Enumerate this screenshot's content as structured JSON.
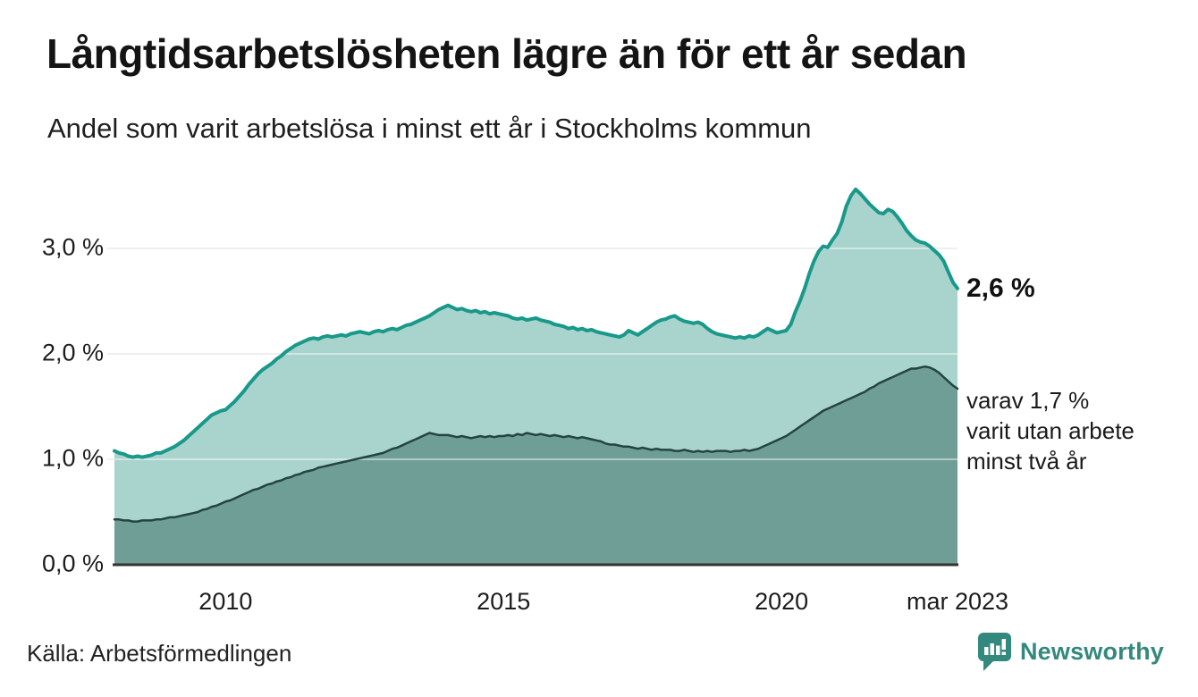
{
  "header": {
    "title": "Långtidsarbetslösheten lägre än för ett år sedan",
    "subtitle": "Andel som varit arbetslösa i minst ett år i Stockholms kommun"
  },
  "chart_data": {
    "type": "area",
    "title": "Långtidsarbetslösheten lägre än för ett år sedan",
    "subtitle": "Andel som varit arbetslösa i minst ett år i Stockholms kommun",
    "unit": "%",
    "frequency": "monthly",
    "x_start": "2008-01",
    "x_end": "2023-03",
    "ylim": [
      0,
      3.7
    ],
    "grid": "horizontal",
    "x_ticks": [
      {
        "label": "2010",
        "month_index": 24
      },
      {
        "label": "2015",
        "month_index": 84
      },
      {
        "label": "2020",
        "month_index": 144
      },
      {
        "label": "mar 2023",
        "month_index": 182
      }
    ],
    "y_ticks": [
      {
        "label": "0,0 %",
        "value": 0
      },
      {
        "label": "1,0 %",
        "value": 1
      },
      {
        "label": "2,0 %",
        "value": 2
      },
      {
        "label": "3,0 %",
        "value": 3
      }
    ],
    "series": [
      {
        "name": "Andel arbetslösa minst ett år",
        "end_label": "2,6 %",
        "last_value": 2.6,
        "line_color": "#18998a",
        "fill_color": "#a9d4cd",
        "values": [
          1.08,
          1.06,
          1.05,
          1.03,
          1.02,
          1.03,
          1.02,
          1.03,
          1.04,
          1.06,
          1.06,
          1.08,
          1.1,
          1.12,
          1.15,
          1.18,
          1.22,
          1.26,
          1.3,
          1.34,
          1.38,
          1.42,
          1.44,
          1.46,
          1.47,
          1.51,
          1.55,
          1.6,
          1.65,
          1.71,
          1.76,
          1.81,
          1.85,
          1.88,
          1.91,
          1.95,
          1.98,
          2.02,
          2.05,
          2.08,
          2.1,
          2.12,
          2.14,
          2.15,
          2.14,
          2.16,
          2.17,
          2.16,
          2.17,
          2.18,
          2.17,
          2.19,
          2.2,
          2.21,
          2.2,
          2.19,
          2.21,
          2.22,
          2.21,
          2.23,
          2.24,
          2.23,
          2.25,
          2.27,
          2.28,
          2.3,
          2.32,
          2.34,
          2.36,
          2.39,
          2.42,
          2.44,
          2.46,
          2.44,
          2.42,
          2.43,
          2.41,
          2.4,
          2.41,
          2.39,
          2.4,
          2.38,
          2.39,
          2.38,
          2.37,
          2.36,
          2.34,
          2.33,
          2.34,
          2.32,
          2.33,
          2.34,
          2.32,
          2.31,
          2.3,
          2.28,
          2.27,
          2.26,
          2.24,
          2.25,
          2.23,
          2.24,
          2.22,
          2.23,
          2.21,
          2.2,
          2.19,
          2.18,
          2.17,
          2.16,
          2.18,
          2.22,
          2.2,
          2.18,
          2.21,
          2.24,
          2.27,
          2.3,
          2.32,
          2.33,
          2.35,
          2.36,
          2.33,
          2.31,
          2.3,
          2.29,
          2.3,
          2.28,
          2.24,
          2.21,
          2.19,
          2.18,
          2.17,
          2.16,
          2.15,
          2.16,
          2.15,
          2.17,
          2.16,
          2.18,
          2.21,
          2.24,
          2.22,
          2.2,
          2.21,
          2.22,
          2.28,
          2.4,
          2.5,
          2.62,
          2.76,
          2.88,
          2.97,
          3.02,
          3.01,
          3.08,
          3.14,
          3.25,
          3.4,
          3.5,
          3.56,
          3.52,
          3.47,
          3.42,
          3.38,
          3.34,
          3.33,
          3.37,
          3.35,
          3.3,
          3.24,
          3.17,
          3.12,
          3.08,
          3.06,
          3.05,
          3.02,
          2.98,
          2.94,
          2.88,
          2.78,
          2.68,
          2.62
        ]
      },
      {
        "name": "Varav utan arbete minst två år",
        "end_label": "varav 1,7 % varit utan arbete minst två år",
        "last_value": 1.7,
        "line_color": "#24443f",
        "fill_color": "#6f9e97",
        "values": [
          0.43,
          0.43,
          0.42,
          0.42,
          0.41,
          0.41,
          0.42,
          0.42,
          0.42,
          0.43,
          0.43,
          0.44,
          0.45,
          0.45,
          0.46,
          0.47,
          0.48,
          0.49,
          0.5,
          0.52,
          0.53,
          0.55,
          0.56,
          0.58,
          0.6,
          0.61,
          0.63,
          0.65,
          0.67,
          0.69,
          0.71,
          0.72,
          0.74,
          0.76,
          0.77,
          0.79,
          0.8,
          0.82,
          0.83,
          0.85,
          0.86,
          0.88,
          0.89,
          0.9,
          0.92,
          0.93,
          0.94,
          0.95,
          0.96,
          0.97,
          0.98,
          0.99,
          1.0,
          1.01,
          1.02,
          1.03,
          1.04,
          1.05,
          1.06,
          1.08,
          1.1,
          1.11,
          1.13,
          1.15,
          1.17,
          1.19,
          1.21,
          1.23,
          1.25,
          1.24,
          1.23,
          1.23,
          1.23,
          1.22,
          1.21,
          1.22,
          1.21,
          1.2,
          1.21,
          1.22,
          1.21,
          1.22,
          1.21,
          1.22,
          1.22,
          1.23,
          1.22,
          1.24,
          1.23,
          1.25,
          1.24,
          1.23,
          1.24,
          1.23,
          1.22,
          1.23,
          1.22,
          1.21,
          1.22,
          1.21,
          1.2,
          1.21,
          1.2,
          1.19,
          1.18,
          1.17,
          1.15,
          1.14,
          1.14,
          1.13,
          1.12,
          1.12,
          1.11,
          1.1,
          1.11,
          1.1,
          1.09,
          1.1,
          1.09,
          1.09,
          1.09,
          1.08,
          1.08,
          1.09,
          1.08,
          1.07,
          1.08,
          1.07,
          1.08,
          1.07,
          1.08,
          1.08,
          1.08,
          1.07,
          1.08,
          1.08,
          1.09,
          1.08,
          1.09,
          1.1,
          1.12,
          1.14,
          1.16,
          1.18,
          1.2,
          1.22,
          1.25,
          1.28,
          1.31,
          1.34,
          1.37,
          1.4,
          1.43,
          1.46,
          1.48,
          1.5,
          1.52,
          1.54,
          1.56,
          1.58,
          1.6,
          1.62,
          1.64,
          1.67,
          1.69,
          1.72,
          1.74,
          1.76,
          1.78,
          1.8,
          1.82,
          1.84,
          1.86,
          1.86,
          1.87,
          1.88,
          1.87,
          1.85,
          1.82,
          1.78,
          1.74,
          1.7,
          1.67
        ]
      }
    ]
  },
  "annotations": {
    "primary_value": "2,6 %",
    "secondary_lines": [
      "varav 1,7 %",
      "varit utan arbete",
      "minst två år"
    ]
  },
  "footer": {
    "source": "Källa: Arbetsförmedlingen",
    "brand": "Newsworthy"
  },
  "colors": {
    "accent_line": "#18998a",
    "accent_fill": "#a9d4cd",
    "dark_line": "#24443f",
    "dark_fill": "#6f9e97",
    "grid": "#e2e2e2",
    "baseline": "#333333",
    "brand": "#33897d",
    "text": "#1a1a1a"
  }
}
